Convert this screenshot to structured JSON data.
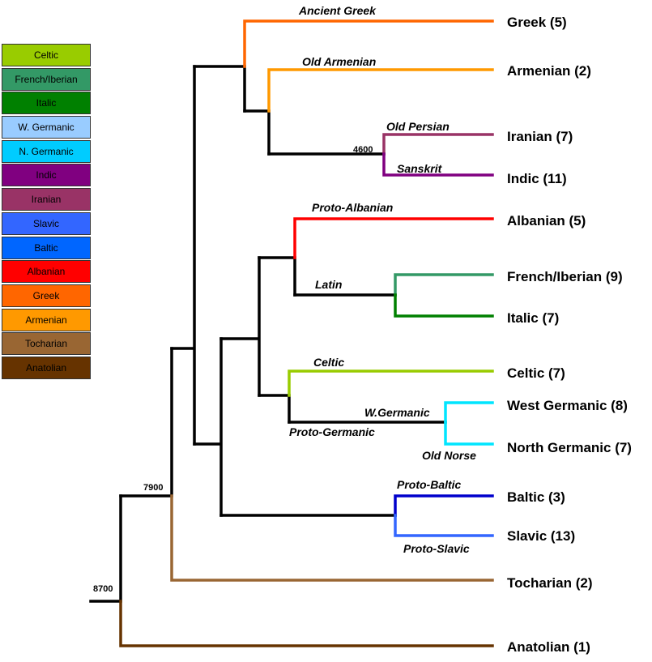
{
  "legend": [
    {
      "label": "Celtic",
      "color": "#99cc00"
    },
    {
      "label": "French/Iberian",
      "color": "#339966"
    },
    {
      "label": "Italic",
      "color": "#008000"
    },
    {
      "label": "W. Germanic",
      "color": "#99ccff"
    },
    {
      "label": "N. Germanic",
      "color": "#00ccff"
    },
    {
      "label": "Indic",
      "color": "#800080"
    },
    {
      "label": "Iranian",
      "color": "#993366"
    },
    {
      "label": "Slavic",
      "color": "#3366ff"
    },
    {
      "label": "Baltic",
      "color": "#0066ff"
    },
    {
      "label": "Albanian",
      "color": "#ff0000"
    },
    {
      "label": "Greek",
      "color": "#ff6600"
    },
    {
      "label": "Armenian",
      "color": "#ff9900"
    },
    {
      "label": "Tocharian",
      "color": "#996633"
    },
    {
      "label": "Anatolian",
      "color": "#663300"
    }
  ],
  "leaves": [
    {
      "id": "greek",
      "label": "Greek (5)"
    },
    {
      "id": "armenian",
      "label": "Armenian (2)"
    },
    {
      "id": "iranian",
      "label": "Iranian (7)"
    },
    {
      "id": "indic",
      "label": "Indic (11)"
    },
    {
      "id": "albanian",
      "label": "Albanian (5)"
    },
    {
      "id": "french",
      "label": "French/Iberian (9)"
    },
    {
      "id": "italic",
      "label": "Italic (7)"
    },
    {
      "id": "celtic",
      "label": "Celtic (7)"
    },
    {
      "id": "wgerm",
      "label": "West Germanic (8)"
    },
    {
      "id": "ngerm",
      "label": "North Germanic (7)"
    },
    {
      "id": "baltic",
      "label": "Baltic (3)"
    },
    {
      "id": "slavic",
      "label": "Slavic (13)"
    },
    {
      "id": "tocharian",
      "label": "Tocharian (2)"
    },
    {
      "id": "anatolian",
      "label": "Anatolian (1)"
    }
  ],
  "branch_labels": [
    {
      "id": "ancient-greek",
      "text": "Ancient Greek"
    },
    {
      "id": "old-armenian",
      "text": "Old Armenian"
    },
    {
      "id": "old-persian",
      "text": "Old Persian"
    },
    {
      "id": "sanskrit",
      "text": "Sanskrit"
    },
    {
      "id": "proto-albanian",
      "text": "Proto-Albanian"
    },
    {
      "id": "latin",
      "text": "Latin"
    },
    {
      "id": "celtic-branch",
      "text": "Celtic"
    },
    {
      "id": "w-germanic",
      "text": "W.Germanic"
    },
    {
      "id": "proto-germanic",
      "text": "Proto-Germanic"
    },
    {
      "id": "old-norse",
      "text": "Old Norse"
    },
    {
      "id": "proto-baltic",
      "text": "Proto-Baltic"
    },
    {
      "id": "proto-slavic",
      "text": "Proto-Slavic"
    }
  ],
  "dates": [
    {
      "id": "d4600",
      "text": "4600"
    },
    {
      "id": "d7900",
      "text": "7900"
    },
    {
      "id": "d8700",
      "text": "8700"
    }
  ]
}
